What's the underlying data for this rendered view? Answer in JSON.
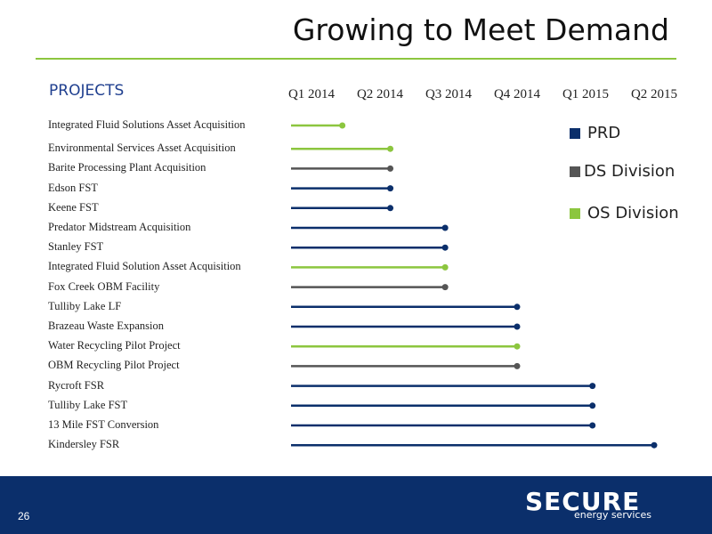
{
  "title": "Growing to Meet Demand",
  "section_title": "PROJECTS",
  "page_number": "26",
  "logo": {
    "name": "SECURE",
    "tagline": "energy services"
  },
  "colors": {
    "PRD": "#0b2f6b",
    "DS": "#555555",
    "OS": "#8cc63f"
  },
  "chart_data": {
    "type": "timeline",
    "quarters": [
      "Q1 2014",
      "Q2 2014",
      "Q3 2014",
      "Q4 2014",
      "Q1 2015",
      "Q2 2015"
    ],
    "legend": [
      {
        "division": "PRD",
        "label": "PRD"
      },
      {
        "division": "DS",
        "label": "DS Division"
      },
      {
        "division": "OS",
        "label": "OS Division"
      }
    ],
    "projects": [
      {
        "name": "Integrated Fluid Solutions Asset Acquisition",
        "division": "OS",
        "end": 0.45
      },
      {
        "name": "Environmental Services Asset Acquisition",
        "division": "OS",
        "end": 1.15
      },
      {
        "name": "Barite Processing Plant Acquisition",
        "division": "DS",
        "end": 1.15
      },
      {
        "name": "Edson FST",
        "division": "PRD",
        "end": 1.15
      },
      {
        "name": "Keene FST",
        "division": "PRD",
        "end": 1.15
      },
      {
        "name": "Predator Midstream Acquisition",
        "division": "PRD",
        "end": 1.95
      },
      {
        "name": "Stanley FST",
        "division": "PRD",
        "end": 1.95
      },
      {
        "name": "Integrated Fluid Solution Asset Acquisition",
        "division": "OS",
        "end": 1.95
      },
      {
        "name": "Fox Creek OBM Facility",
        "division": "DS",
        "end": 1.95
      },
      {
        "name": "Tulliby Lake LF",
        "division": "PRD",
        "end": 3.0
      },
      {
        "name": "Brazeau Waste Expansion",
        "division": "PRD",
        "end": 3.0
      },
      {
        "name": "Water Recycling Pilot Project",
        "division": "OS",
        "end": 3.0
      },
      {
        "name": "OBM Recycling Pilot Project",
        "division": "DS",
        "end": 3.0
      },
      {
        "name": "Rycroft FSR",
        "division": "PRD",
        "end": 4.1
      },
      {
        "name": "Tulliby Lake FST",
        "division": "PRD",
        "end": 4.1
      },
      {
        "name": "13 Mile FST Conversion",
        "division": "PRD",
        "end": 4.1
      },
      {
        "name": "Kindersley FSR",
        "division": "PRD",
        "end": 5.0
      }
    ]
  }
}
